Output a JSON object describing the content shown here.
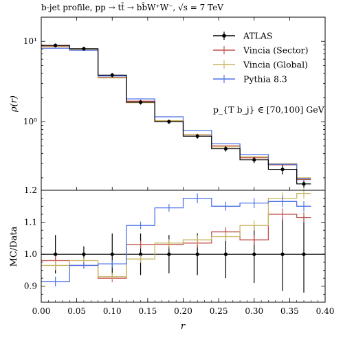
{
  "chart_data": {
    "type": "line",
    "title": "b-jet profile, pp → tt̄ → bb̄W⁺W⁻, √s = 7 TeV",
    "annotation": "p_{T b_j} ∈ [70,100] GeV",
    "bin_edges": [
      0.0,
      0.04,
      0.08,
      0.12,
      0.16,
      0.2,
      0.24,
      0.28,
      0.32,
      0.36,
      0.38
    ],
    "x": [
      0.02,
      0.06,
      0.1,
      0.14,
      0.18,
      0.22,
      0.26,
      0.3,
      0.34,
      0.37
    ],
    "upper": {
      "ylabel": "ρ(r)",
      "yscale": "log",
      "ylim": [
        0.14,
        20
      ],
      "yticks": [
        {
          "value": 1,
          "label": "10⁰"
        },
        {
          "value": 10,
          "label": "10¹"
        }
      ],
      "data": {
        "name": "ATLAS",
        "color": "#000000",
        "y": [
          8.9,
          8.1,
          3.8,
          1.75,
          1.0,
          0.66,
          0.46,
          0.335,
          0.255,
          0.168
        ],
        "err": [
          0.5,
          0.45,
          0.25,
          0.12,
          0.06,
          0.045,
          0.035,
          0.03,
          0.035,
          0.018
        ]
      },
      "series": [
        {
          "name": "Vincia (Sector)",
          "color": "#c0504d",
          "y": [
            8.75,
            7.85,
            3.55,
            1.8,
            1.03,
            0.685,
            0.5,
            0.355,
            0.29,
            0.19
          ]
        },
        {
          "name": "Vincia (Global)",
          "color": "#c8b560",
          "y": [
            8.55,
            7.95,
            3.5,
            1.72,
            1.03,
            0.69,
            0.485,
            0.365,
            0.3,
            0.2
          ]
        },
        {
          "name": "Pythia 8.3",
          "color": "#4f73e8",
          "y": [
            8.2,
            7.75,
            3.7,
            1.92,
            1.15,
            0.78,
            0.53,
            0.39,
            0.295,
            0.195
          ]
        }
      ]
    },
    "lower": {
      "ylabel": "MC/Data",
      "ylim": [
        0.85,
        1.2
      ],
      "yticks": [
        0.9,
        1.0,
        1.1,
        1.2
      ],
      "data_band": [
        0.06,
        0.025,
        0.065,
        0.065,
        0.06,
        0.065,
        0.075,
        0.09,
        0.115,
        0.12
      ],
      "series": [
        {
          "name": "Vincia (Sector)",
          "color": "#c0504d",
          "y": [
            0.98,
            0.965,
            0.925,
            1.03,
            1.03,
            1.035,
            1.07,
            1.045,
            1.125,
            1.115
          ]
        },
        {
          "name": "Vincia (Global)",
          "color": "#c8b560",
          "y": [
            0.965,
            0.98,
            0.93,
            0.985,
            1.035,
            1.045,
            1.055,
            1.09,
            1.175,
            1.19
          ]
        },
        {
          "name": "Pythia 8.3",
          "color": "#4f73e8",
          "y": [
            0.915,
            0.965,
            0.97,
            1.09,
            1.145,
            1.175,
            1.15,
            1.16,
            1.165,
            1.15
          ]
        }
      ],
      "ratio_err": [
        0.015,
        0.01,
        0.012,
        0.012,
        0.012,
        0.015,
        0.014,
        0.016,
        0.018,
        0.016
      ]
    },
    "xlabel": "r",
    "xlim": [
      0.0,
      0.4
    ],
    "xticks": [
      "0.00",
      "0.05",
      "0.10",
      "0.15",
      "0.20",
      "0.25",
      "0.30",
      "0.35",
      "0.40"
    ],
    "legend": {
      "placement": "top-right",
      "entries": [
        {
          "label": "ATLAS",
          "color": "#000000"
        },
        {
          "label": "Vincia (Sector)",
          "color": "#c0504d"
        },
        {
          "label": "Vincia (Global)",
          "color": "#c8b560"
        },
        {
          "label": "Pythia 8.3",
          "color": "#4f73e8"
        }
      ]
    }
  }
}
